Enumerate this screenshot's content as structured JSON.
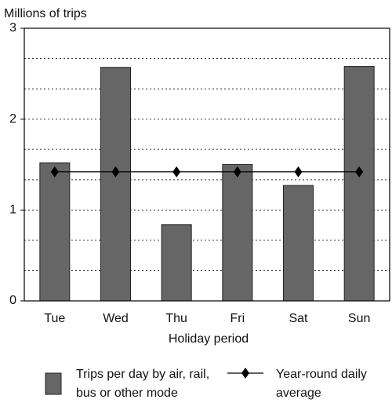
{
  "chart_data": {
    "type": "bar",
    "y_label": "Millions of trips",
    "x_label": "Holiday period",
    "categories": [
      "Tue",
      "Wed",
      "Thu",
      "Fri",
      "Sat",
      "Sun"
    ],
    "series": [
      {
        "name": "Trips per day by air, rail, bus or other mode",
        "type": "bar",
        "color": "#666666",
        "values": [
          1.52,
          2.57,
          0.84,
          1.5,
          1.27,
          2.58
        ]
      },
      {
        "name": "Year-round daily average",
        "type": "line",
        "color": "#000000",
        "values": [
          1.42,
          1.42,
          1.42,
          1.42,
          1.42,
          1.42
        ]
      }
    ],
    "ylim": [
      0,
      3
    ],
    "yticks": [
      0,
      1,
      2,
      3
    ],
    "ygrid": [
      0.333,
      0.667,
      1,
      1.333,
      1.667,
      2,
      2.333,
      2.667
    ],
    "grid": true
  }
}
